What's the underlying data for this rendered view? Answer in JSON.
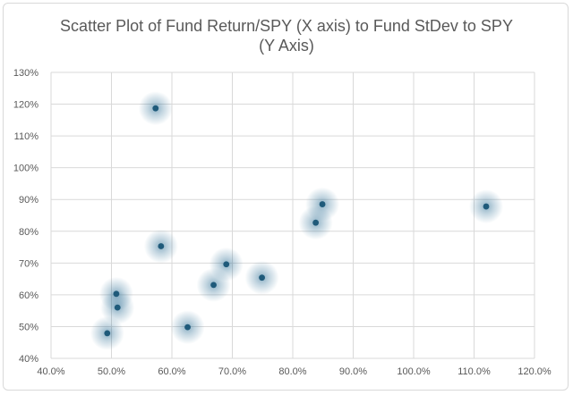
{
  "chart_data": {
    "type": "scatter",
    "title": "Scatter Plot of Fund Return/SPY (X axis) to Fund StDev to SPY (Y Axis)",
    "title_lines": [
      "Scatter Plot of Fund Return/SPY (X axis) to Fund StDev to SPY",
      "(Y Axis)"
    ],
    "xlabel": "",
    "ylabel": "",
    "xlim": [
      0.4,
      1.2
    ],
    "ylim": [
      0.4,
      1.3
    ],
    "x_ticks": [
      0.4,
      0.5,
      0.6,
      0.7,
      0.8,
      0.9,
      1.0,
      1.1,
      1.2
    ],
    "x_tick_labels": [
      "40.0%",
      "50.0%",
      "60.0%",
      "70.0%",
      "80.0%",
      "90.0%",
      "100.0%",
      "110.0%",
      "120.0%"
    ],
    "y_ticks": [
      0.4,
      0.5,
      0.6,
      0.7,
      0.8,
      0.9,
      1.0,
      1.1,
      1.2,
      1.3
    ],
    "y_tick_labels": [
      "40%",
      "50%",
      "60%",
      "70%",
      "80%",
      "90%",
      "100%",
      "110%",
      "120%",
      "130%"
    ],
    "grid": true,
    "marker_color": "#1f5a7a",
    "glow_color": "#2e6f95",
    "points": [
      {
        "x": 0.573,
        "y": 1.187
      },
      {
        "x": 0.582,
        "y": 0.753
      },
      {
        "x": 0.508,
        "y": 0.603
      },
      {
        "x": 0.51,
        "y": 0.56
      },
      {
        "x": 0.493,
        "y": 0.479
      },
      {
        "x": 0.626,
        "y": 0.498
      },
      {
        "x": 0.669,
        "y": 0.631
      },
      {
        "x": 0.69,
        "y": 0.696
      },
      {
        "x": 0.749,
        "y": 0.654
      },
      {
        "x": 0.838,
        "y": 0.827
      },
      {
        "x": 0.849,
        "y": 0.885
      },
      {
        "x": 1.12,
        "y": 0.878
      }
    ]
  }
}
